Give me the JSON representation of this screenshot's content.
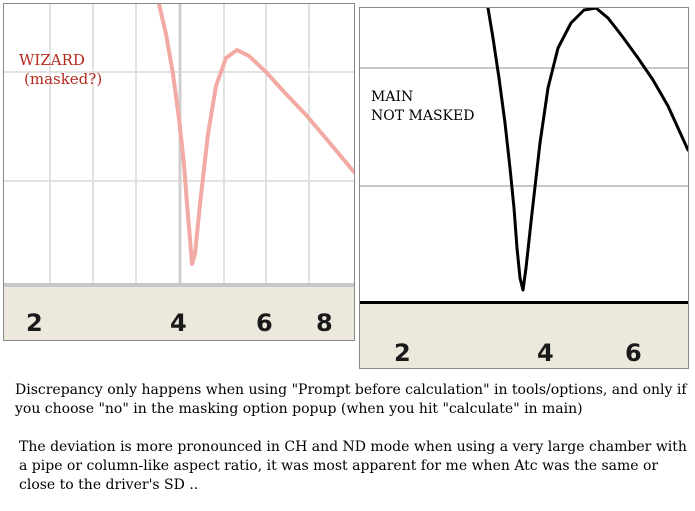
{
  "wizard_panel": {
    "label_line1": "WIZARD",
    "label_line2": "(masked?)",
    "axis_ticks": [
      "2",
      "4",
      "6",
      "8"
    ],
    "curve_color": "#f2aaa4",
    "label_color": "#b42a1e"
  },
  "main_panel": {
    "label_line1": "MAIN",
    "label_line2": "NOT MASKED",
    "axis_ticks": [
      "2",
      "4",
      "6"
    ],
    "curve_color": "#000000"
  },
  "notes": {
    "paragraph1": "Discrepancy only happens when using \"Prompt before calculation\" in tools/options, and only if you choose \"no\" in the masking option popup (when you hit \"calculate\" in main)",
    "paragraph2": "The deviation is more pronounced in CH and ND mode when using a very large chamber with a pipe or column-like aspect ratio, it was most apparent for me when Atc was the same or close to the driver's SD .."
  }
}
